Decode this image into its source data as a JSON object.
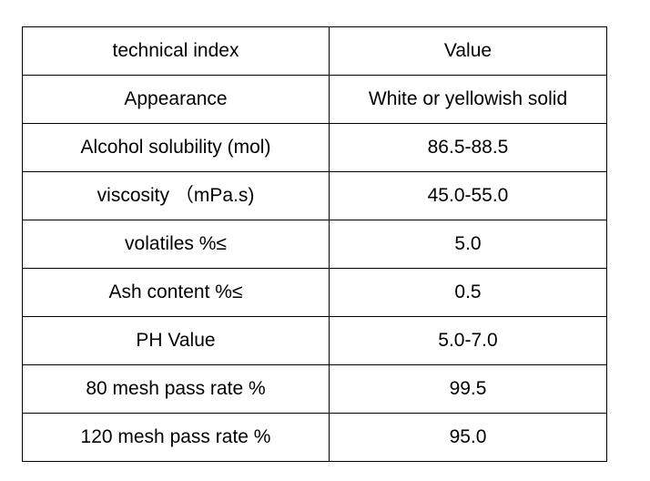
{
  "table": {
    "header": [
      "technical index",
      "Value"
    ],
    "rows": [
      [
        "Appearance",
        "White or yellowish solid"
      ],
      [
        "Alcohol solubility (mol)",
        "86.5-88.5"
      ],
      [
        "viscosity （mPa.s)",
        "45.0-55.0"
      ],
      [
        "volatiles %≤",
        "5.0"
      ],
      [
        "Ash content %≤",
        "0.5"
      ],
      [
        "PH Value",
        "5.0-7.0"
      ],
      [
        "80 mesh pass rate %",
        "99.5"
      ],
      [
        "120 mesh pass rate %",
        "95.0"
      ]
    ]
  }
}
